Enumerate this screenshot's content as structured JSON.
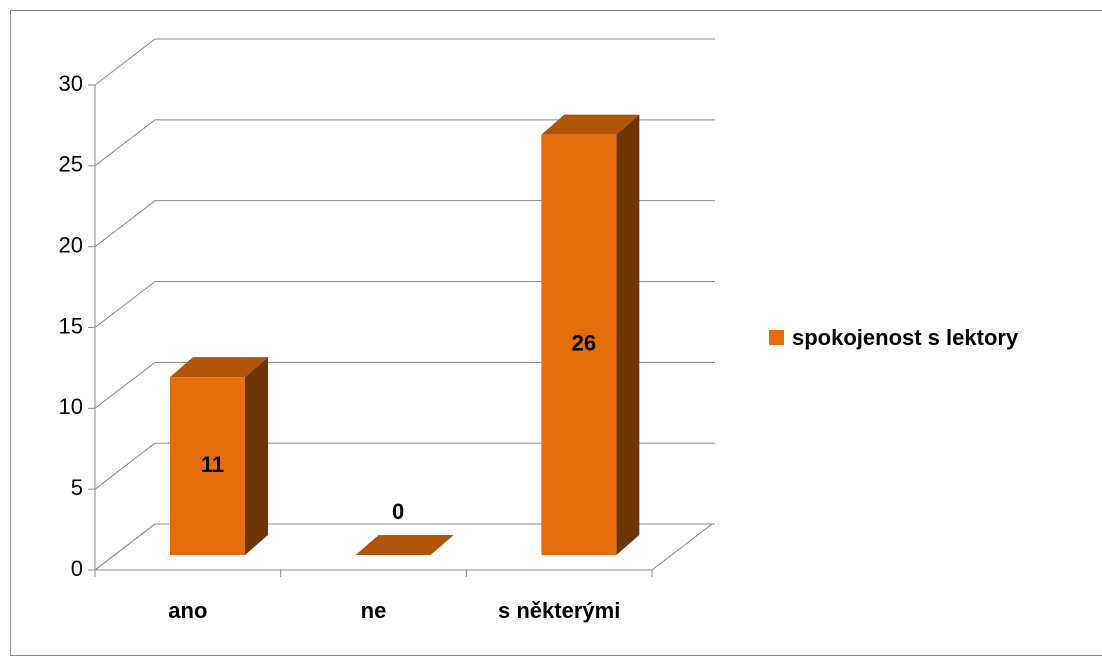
{
  "chart_data": {
    "type": "bar3d",
    "categories": [
      "ano",
      "ne",
      "s některými"
    ],
    "series": [
      {
        "name": "spokojenost s lektory",
        "color": "#e46c0a",
        "values": [
          11,
          0,
          26
        ]
      }
    ],
    "ylim": [
      0,
      30
    ],
    "yticks": [
      0,
      5,
      10,
      15,
      20,
      25,
      30
    ],
    "grid": true,
    "legend": "right"
  }
}
